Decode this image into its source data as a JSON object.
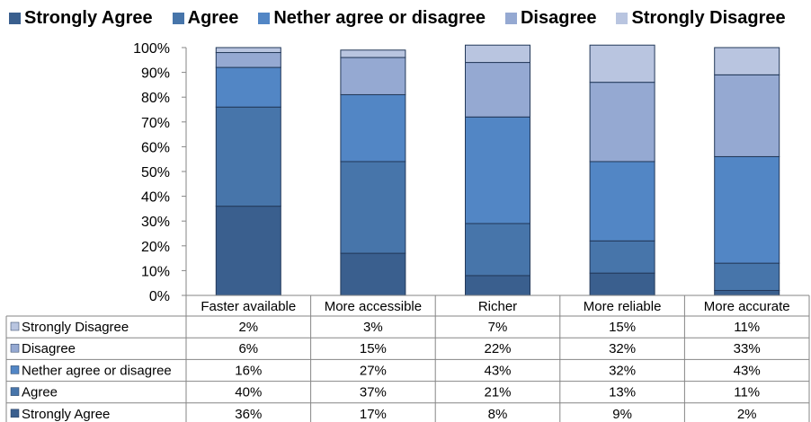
{
  "chart_data": {
    "type": "bar",
    "stacked": true,
    "normalized": true,
    "title": "",
    "xlabel": "",
    "ylabel": "",
    "ylim": [
      0,
      100
    ],
    "yticks": [
      "0%",
      "10%",
      "20%",
      "30%",
      "40%",
      "50%",
      "60%",
      "70%",
      "80%",
      "90%",
      "100%"
    ],
    "grid": false,
    "legend_position": "top",
    "categories": [
      "Faster available",
      "More accessible",
      "Richer",
      "More reliable",
      "More accurate"
    ],
    "series": [
      {
        "name": "Strongly Agree",
        "color": "#3a5f8e",
        "values": [
          36,
          17,
          8,
          9,
          2
        ],
        "labels": [
          "36%",
          "17%",
          "8%",
          "9%",
          "2%"
        ]
      },
      {
        "name": "Agree",
        "color": "#4775aa",
        "values": [
          40,
          37,
          21,
          13,
          11
        ],
        "labels": [
          "40%",
          "37%",
          "21%",
          "13%",
          "11%"
        ]
      },
      {
        "name": "Nether agree or disagree",
        "color": "#5286c5",
        "values": [
          16,
          27,
          43,
          32,
          43
        ],
        "labels": [
          "16%",
          "27%",
          "43%",
          "32%",
          "43%"
        ]
      },
      {
        "name": "Disagree",
        "color": "#95a9d2",
        "values": [
          6,
          15,
          22,
          32,
          33
        ],
        "labels": [
          "6%",
          "15%",
          "22%",
          "32%",
          "33%"
        ]
      },
      {
        "name": "Strongly Disagree",
        "color": "#b9c5e0",
        "values": [
          2,
          3,
          7,
          15,
          11
        ],
        "labels": [
          "2%",
          "3%",
          "7%",
          "15%",
          "11%"
        ]
      }
    ],
    "legend_labels": [
      "Strongly Agree",
      "Agree",
      "Nether agree or disagree",
      "Disagree",
      "Strongly Disagree"
    ],
    "table_row_order": [
      "Strongly Disagree",
      "Disagree",
      "Nether agree or disagree",
      "Agree",
      "Strongly Agree"
    ]
  }
}
